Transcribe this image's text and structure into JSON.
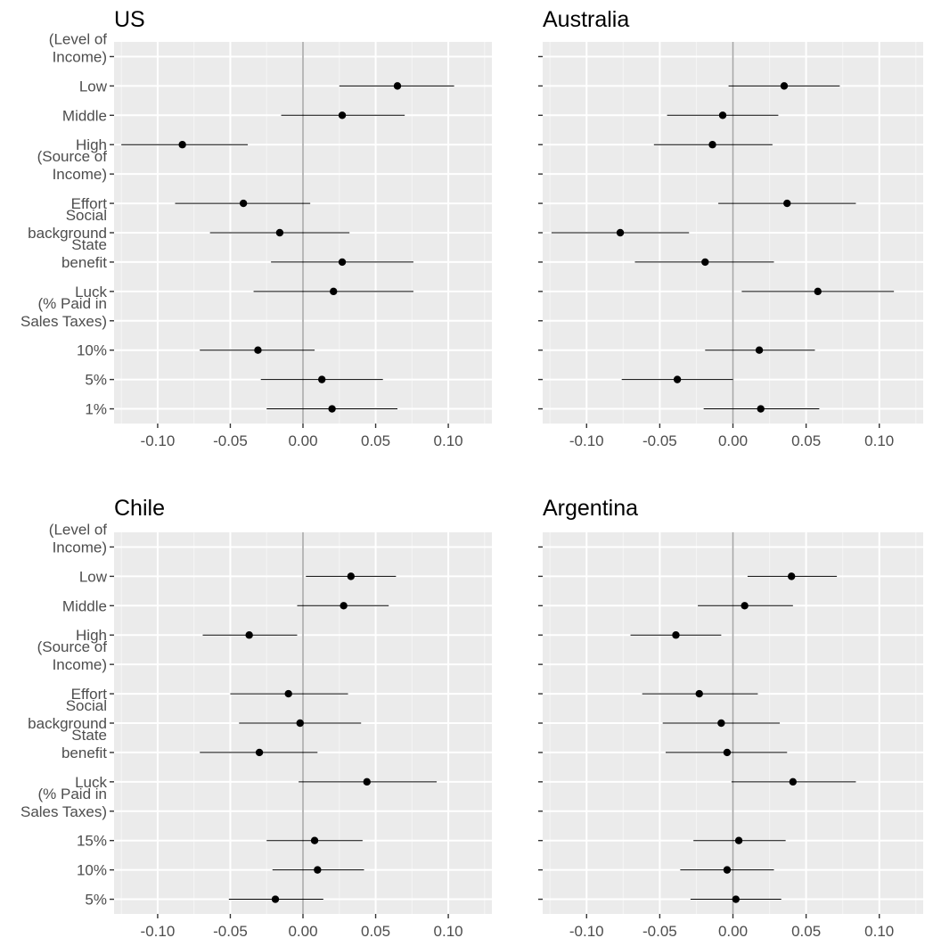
{
  "chart_data": [
    {
      "type": "scatter",
      "title": "US",
      "xticks": [
        "-0.10",
        "-0.05",
        "0.00",
        "0.05",
        "0.10"
      ],
      "xlim": [
        -0.13,
        0.13
      ],
      "rows": [
        {
          "label": [
            "(Level of",
            "Income)"
          ],
          "header": true
        },
        {
          "label": [
            "Low"
          ],
          "est": 0.065,
          "lo": 0.025,
          "hi": 0.104
        },
        {
          "label": [
            "Middle"
          ],
          "est": 0.027,
          "lo": -0.015,
          "hi": 0.07
        },
        {
          "label": [
            "High"
          ],
          "est": -0.083,
          "lo": -0.125,
          "hi": -0.038
        },
        {
          "label": [
            "(Source of",
            "Income)"
          ],
          "header": true
        },
        {
          "label": [
            "Effort"
          ],
          "est": -0.041,
          "lo": -0.088,
          "hi": 0.005
        },
        {
          "label": [
            "Social",
            "background"
          ],
          "est": -0.016,
          "lo": -0.064,
          "hi": 0.032
        },
        {
          "label": [
            "State",
            "benefit"
          ],
          "est": 0.027,
          "lo": -0.022,
          "hi": 0.076
        },
        {
          "label": [
            "Luck"
          ],
          "est": 0.021,
          "lo": -0.034,
          "hi": 0.076
        },
        {
          "label": [
            "(% Paid in",
            "Sales Taxes)"
          ],
          "header": true
        },
        {
          "label": [
            "10%"
          ],
          "est": -0.031,
          "lo": -0.071,
          "hi": 0.008
        },
        {
          "label": [
            "5%"
          ],
          "est": 0.013,
          "lo": -0.029,
          "hi": 0.055
        },
        {
          "label": [
            "1%"
          ],
          "est": 0.02,
          "lo": -0.025,
          "hi": 0.065
        }
      ]
    },
    {
      "type": "scatter",
      "title": "Australia",
      "xticks": [
        "-0.10",
        "-0.05",
        "0.00",
        "0.05",
        "0.10"
      ],
      "xlim": [
        -0.13,
        0.13
      ],
      "rows": [
        {
          "label": [
            "(Level of",
            "Income)"
          ],
          "header": true
        },
        {
          "label": [
            "Low"
          ],
          "est": 0.035,
          "lo": -0.003,
          "hi": 0.073
        },
        {
          "label": [
            "Middle"
          ],
          "est": -0.007,
          "lo": -0.045,
          "hi": 0.031
        },
        {
          "label": [
            "High"
          ],
          "est": -0.014,
          "lo": -0.054,
          "hi": 0.027
        },
        {
          "label": [
            "(Source of",
            "Income)"
          ],
          "header": true
        },
        {
          "label": [
            "Effort"
          ],
          "est": 0.037,
          "lo": -0.01,
          "hi": 0.084
        },
        {
          "label": [
            "Social",
            "background"
          ],
          "est": -0.077,
          "lo": -0.124,
          "hi": -0.03
        },
        {
          "label": [
            "State",
            "benefit"
          ],
          "est": -0.019,
          "lo": -0.067,
          "hi": 0.028
        },
        {
          "label": [
            "Luck"
          ],
          "est": 0.058,
          "lo": 0.006,
          "hi": 0.11
        },
        {
          "label": [
            "(% Paid in",
            "Sales Taxes)"
          ],
          "header": true
        },
        {
          "label": [
            "10%"
          ],
          "est": 0.018,
          "lo": -0.019,
          "hi": 0.056
        },
        {
          "label": [
            "5%"
          ],
          "est": -0.038,
          "lo": -0.076,
          "hi": 0.0
        },
        {
          "label": [
            "1%"
          ],
          "est": 0.019,
          "lo": -0.02,
          "hi": 0.059
        }
      ]
    },
    {
      "type": "scatter",
      "title": "Chile",
      "xticks": [
        "-0.10",
        "-0.05",
        "0.00",
        "0.05",
        "0.10"
      ],
      "xlim": [
        -0.13,
        0.13
      ],
      "rows": [
        {
          "label": [
            "(Level of",
            "Income)"
          ],
          "header": true
        },
        {
          "label": [
            "Low"
          ],
          "est": 0.033,
          "lo": 0.002,
          "hi": 0.064
        },
        {
          "label": [
            "Middle"
          ],
          "est": 0.028,
          "lo": -0.004,
          "hi": 0.059
        },
        {
          "label": [
            "High"
          ],
          "est": -0.037,
          "lo": -0.069,
          "hi": -0.004
        },
        {
          "label": [
            "(Source of",
            "Income)"
          ],
          "header": true
        },
        {
          "label": [
            "Effort"
          ],
          "est": -0.01,
          "lo": -0.05,
          "hi": 0.031
        },
        {
          "label": [
            "Social",
            "background"
          ],
          "est": -0.002,
          "lo": -0.044,
          "hi": 0.04
        },
        {
          "label": [
            "State",
            "benefit"
          ],
          "est": -0.03,
          "lo": -0.071,
          "hi": 0.01
        },
        {
          "label": [
            "Luck"
          ],
          "est": 0.044,
          "lo": -0.003,
          "hi": 0.092
        },
        {
          "label": [
            "(% Paid in",
            "Sales Taxes)"
          ],
          "header": true
        },
        {
          "label": [
            "15%"
          ],
          "est": 0.008,
          "lo": -0.025,
          "hi": 0.041
        },
        {
          "label": [
            "10%"
          ],
          "est": 0.01,
          "lo": -0.021,
          "hi": 0.042
        },
        {
          "label": [
            "5%"
          ],
          "est": -0.019,
          "lo": -0.051,
          "hi": 0.014
        }
      ]
    },
    {
      "type": "scatter",
      "title": "Argentina",
      "xticks": [
        "-0.10",
        "-0.05",
        "0.00",
        "0.05",
        "0.10"
      ],
      "xlim": [
        -0.13,
        0.13
      ],
      "rows": [
        {
          "label": [
            "(Level of",
            "Income)"
          ],
          "header": true
        },
        {
          "label": [
            "Low"
          ],
          "est": 0.04,
          "lo": 0.01,
          "hi": 0.071
        },
        {
          "label": [
            "Middle"
          ],
          "est": 0.008,
          "lo": -0.024,
          "hi": 0.041
        },
        {
          "label": [
            "High"
          ],
          "est": -0.039,
          "lo": -0.07,
          "hi": -0.008
        },
        {
          "label": [
            "(Source of",
            "Income)"
          ],
          "header": true
        },
        {
          "label": [
            "Effort"
          ],
          "est": -0.023,
          "lo": -0.062,
          "hi": 0.017
        },
        {
          "label": [
            "Social",
            "background"
          ],
          "est": -0.008,
          "lo": -0.048,
          "hi": 0.032
        },
        {
          "label": [
            "State",
            "benefit"
          ],
          "est": -0.004,
          "lo": -0.046,
          "hi": 0.037
        },
        {
          "label": [
            "Luck"
          ],
          "est": 0.041,
          "lo": -0.001,
          "hi": 0.084
        },
        {
          "label": [
            "(% Paid in",
            "Sales Taxes)"
          ],
          "header": true
        },
        {
          "label": [
            "15%"
          ],
          "est": 0.004,
          "lo": -0.027,
          "hi": 0.036
        },
        {
          "label": [
            "10%"
          ],
          "est": -0.004,
          "lo": -0.036,
          "hi": 0.028
        },
        {
          "label": [
            "5%"
          ],
          "est": 0.002,
          "lo": -0.029,
          "hi": 0.033
        }
      ]
    }
  ]
}
